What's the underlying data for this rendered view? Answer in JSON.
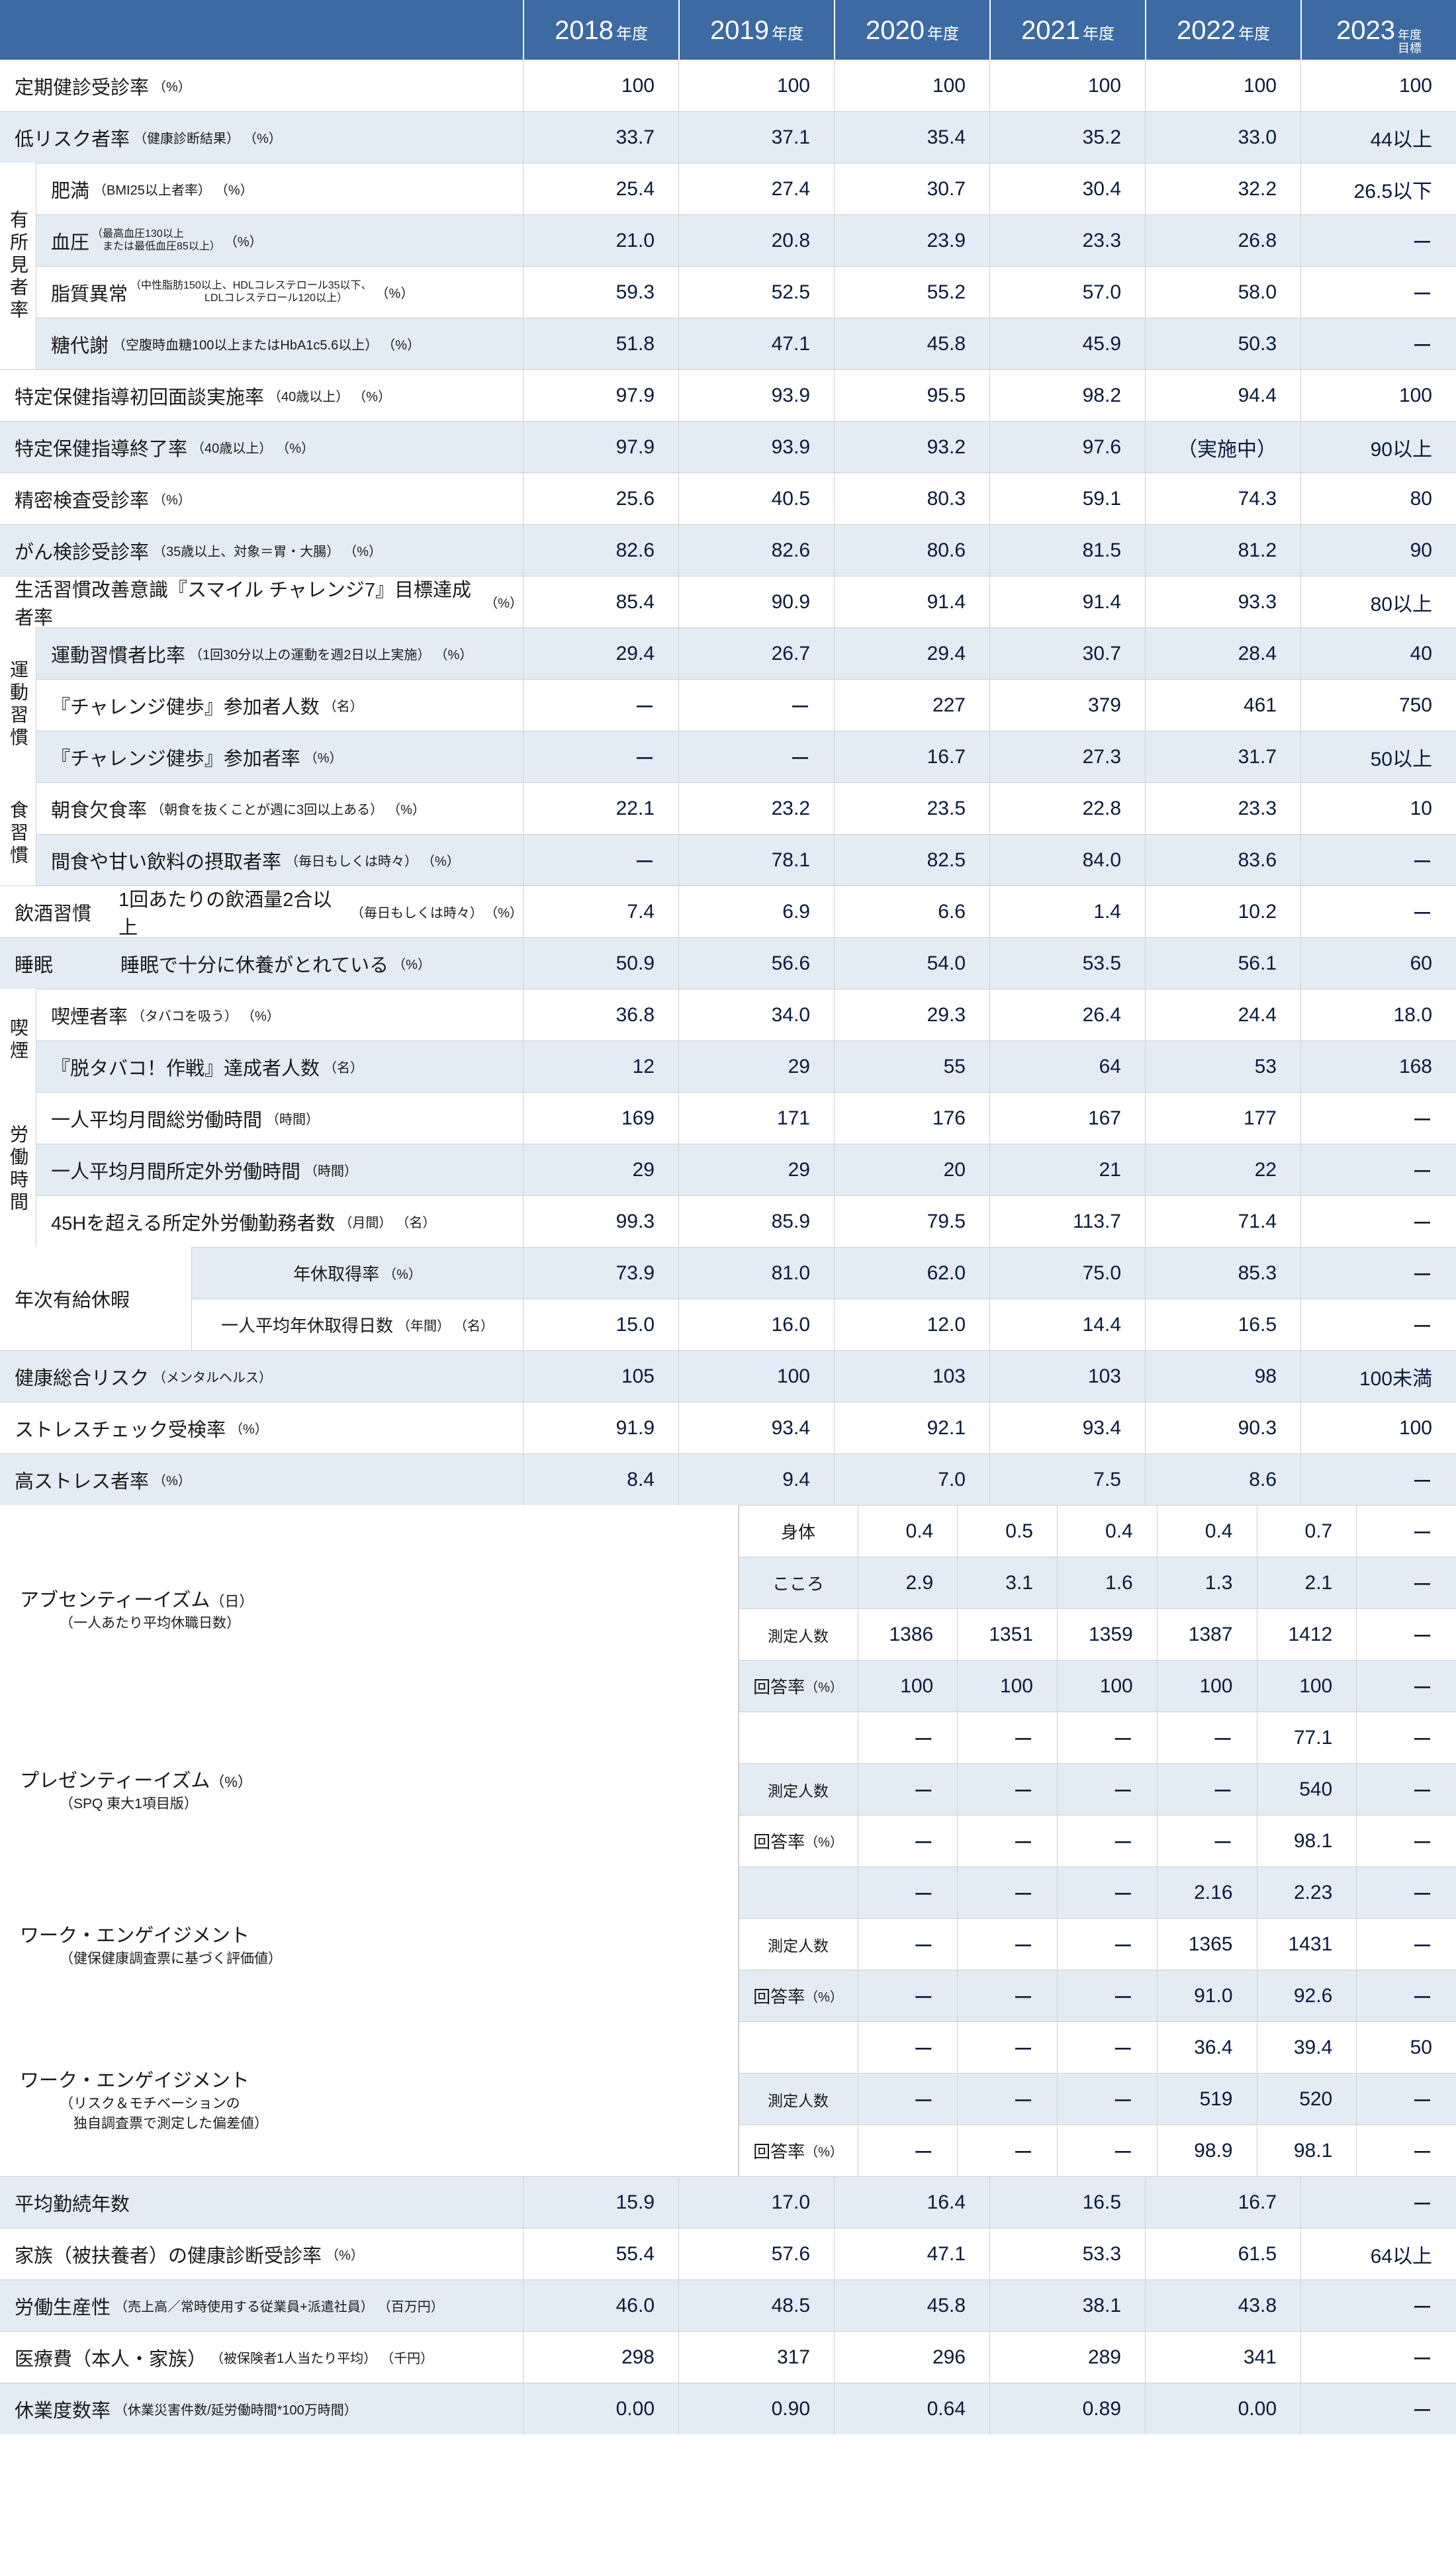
{
  "colors": {
    "header_bg": "#3d6aa2",
    "header_text": "#ffffff",
    "row_even_bg": "#e3ecf5",
    "row_odd_bg": "#ffffff",
    "border": "#d0d0d0",
    "value_text": "#0a1a3a",
    "label_text": "#1a1a1a"
  },
  "headers": [
    {
      "year": "2018",
      "suffix": "年度"
    },
    {
      "year": "2019",
      "suffix": "年度"
    },
    {
      "year": "2020",
      "suffix": "年度"
    },
    {
      "year": "2021",
      "suffix": "年度"
    },
    {
      "year": "2022",
      "suffix": "年度"
    },
    {
      "year": "2023",
      "suffix_small": "年度\n目標"
    }
  ],
  "dash": "ー",
  "rows": [
    {
      "type": "plain",
      "label": "定期健診受診率",
      "unit": "（%）",
      "v": [
        "100",
        "100",
        "100",
        "100",
        "100",
        "100"
      ]
    },
    {
      "type": "plain",
      "label": "低リスク者率",
      "sub": "（健康診断結果）",
      "unit": "（%）",
      "v": [
        "33.7",
        "37.1",
        "35.4",
        "35.2",
        "33.0",
        "44以上"
      ]
    },
    {
      "type": "group_first",
      "vlabel": "有所見者率",
      "span": 4,
      "label": "肥満",
      "sub": "（BMI25以上者率）",
      "unit": "（%）",
      "v": [
        "25.4",
        "27.4",
        "30.7",
        "30.4",
        "32.2",
        "26.5以下"
      ]
    },
    {
      "type": "group_cont",
      "label": "血圧",
      "tiny": "（最高血圧130以上\n　または最低血圧85以上）",
      "unit": "（%）",
      "v": [
        "21.0",
        "20.8",
        "23.9",
        "23.3",
        "26.8",
        "ー"
      ]
    },
    {
      "type": "group_cont",
      "label": "脂質異常",
      "tiny": "（中性脂肪150以上、HDLコレステロール35以下、\n　　　　　　　LDLコレステロール120以上）",
      "unit": "（%）",
      "v": [
        "59.3",
        "52.5",
        "55.2",
        "57.0",
        "58.0",
        "ー"
      ]
    },
    {
      "type": "group_cont",
      "label": "糖代謝",
      "sub": "（空腹時血糖100以上またはHbA1c5.6以上）",
      "unit": "（%）",
      "v": [
        "51.8",
        "47.1",
        "45.8",
        "45.9",
        "50.3",
        "ー"
      ]
    },
    {
      "type": "plain",
      "label": "特定保健指導初回面談実施率",
      "sub": "（40歳以上）",
      "unit": "（%）",
      "v": [
        "97.9",
        "93.9",
        "95.5",
        "98.2",
        "94.4",
        "100"
      ]
    },
    {
      "type": "plain",
      "label": "特定保健指導終了率",
      "sub": "（40歳以上）",
      "unit": "（%）",
      "v": [
        "97.9",
        "93.9",
        "93.2",
        "97.6",
        "（実施中）",
        "90以上"
      ]
    },
    {
      "type": "plain",
      "label": "精密検査受診率",
      "unit": "（%）",
      "v": [
        "25.6",
        "40.5",
        "80.3",
        "59.1",
        "74.3",
        "80"
      ]
    },
    {
      "type": "plain",
      "label": "がん検診受診率",
      "sub": "（35歳以上、対象＝胃・大腸）",
      "unit": "（%）",
      "v": [
        "82.6",
        "82.6",
        "80.6",
        "81.5",
        "81.2",
        "90"
      ]
    },
    {
      "type": "plain",
      "label": "生活習慣改善意識『スマイル チャレンジ7』目標達成者率",
      "unit": "（%）",
      "v": [
        "85.4",
        "90.9",
        "91.4",
        "91.4",
        "93.3",
        "80以上"
      ]
    },
    {
      "type": "group_first",
      "vlabel": "運動習慣",
      "span": 3,
      "label": "運動習慣者比率",
      "sub": "（1回30分以上の運動を週2日以上実施）",
      "unit": "（%）",
      "v": [
        "29.4",
        "26.7",
        "29.4",
        "30.7",
        "28.4",
        "40"
      ]
    },
    {
      "type": "group_cont",
      "label": "『チャレンジ健歩』参加者人数",
      "unit": "（名）",
      "v": [
        "ー",
        "ー",
        "227",
        "379",
        "461",
        "750"
      ]
    },
    {
      "type": "group_cont",
      "label": "『チャレンジ健歩』参加者率",
      "unit": "（%）",
      "v": [
        "ー",
        "ー",
        "16.7",
        "27.3",
        "31.7",
        "50以上"
      ]
    },
    {
      "type": "group_first",
      "vlabel": "食習慣",
      "span": 2,
      "label": "朝食欠食率",
      "sub": "（朝食を抜くことが週に3回以上ある）",
      "unit": "（%）",
      "v": [
        "22.1",
        "23.2",
        "23.5",
        "22.8",
        "23.3",
        "10"
      ]
    },
    {
      "type": "group_cont",
      "label": "間食や甘い飲料の摂取者率",
      "sub": "（毎日もしくは時々）",
      "unit": "（%）",
      "v": [
        "ー",
        "78.1",
        "82.5",
        "84.0",
        "83.6",
        "ー"
      ]
    },
    {
      "type": "with_prefix",
      "prefix": "飲酒習慣",
      "label": "1回あたりの飲酒量2合以上",
      "sub": "（毎日もしくは時々）",
      "unit": "（%）",
      "v": [
        "7.4",
        "6.9",
        "6.6",
        "1.4",
        "10.2",
        "ー"
      ]
    },
    {
      "type": "with_prefix",
      "prefix": "睡眠",
      "label": "睡眠で十分に休養がとれている",
      "unit": "（%）",
      "v": [
        "50.9",
        "56.6",
        "54.0",
        "53.5",
        "56.1",
        "60"
      ]
    },
    {
      "type": "group_first",
      "vlabel": "喫煙",
      "span": 2,
      "label": "喫煙者率",
      "sub": "（タバコを吸う）",
      "unit": "（%）",
      "v": [
        "36.8",
        "34.0",
        "29.3",
        "26.4",
        "24.4",
        "18.0"
      ]
    },
    {
      "type": "group_cont",
      "label": "『脱タバコ！作戦』達成者人数",
      "unit": "（名）",
      "v": [
        "12",
        "29",
        "55",
        "64",
        "53",
        "168"
      ]
    },
    {
      "type": "group_first",
      "vlabel": "労働時間",
      "span": 3,
      "label": "一人平均月間総労働時間",
      "unit": "（時間）",
      "v": [
        "169",
        "171",
        "176",
        "167",
        "177",
        "ー"
      ]
    },
    {
      "type": "group_cont",
      "label": "一人平均月間所定外労働時間",
      "unit": "（時間）",
      "v": [
        "29",
        "29",
        "20",
        "21",
        "22",
        "ー"
      ]
    },
    {
      "type": "group_cont",
      "label": "45Hを超える所定外労働勤務者数",
      "sub": "（月間）",
      "unit": "（名）",
      "v": [
        "99.3",
        "85.9",
        "79.5",
        "113.7",
        "71.4",
        "ー"
      ]
    },
    {
      "type": "wide_first",
      "wlabel": "年次有給休暇",
      "span": 2,
      "sublabel": "年休取得率",
      "subunit": "（%）",
      "v": [
        "73.9",
        "81.0",
        "62.0",
        "75.0",
        "85.3",
        "ー"
      ]
    },
    {
      "type": "wide_cont",
      "sublabel": "一人平均年休取得日数",
      "subsub": "（年間）",
      "subunit": "（名）",
      "v": [
        "15.0",
        "16.0",
        "12.0",
        "14.4",
        "16.5",
        "ー"
      ]
    },
    {
      "type": "plain",
      "label": "健康総合リスク",
      "sub": "（メンタルヘルス）",
      "v": [
        "105",
        "100",
        "103",
        "103",
        "98",
        "100未満"
      ]
    },
    {
      "type": "plain",
      "label": "ストレスチェック受検率",
      "unit": "（%）",
      "v": [
        "91.9",
        "93.4",
        "92.1",
        "93.4",
        "90.3",
        "100"
      ]
    },
    {
      "type": "plain",
      "label": "高ストレス者率",
      "unit": "（%）",
      "v": [
        "8.4",
        "9.4",
        "7.0",
        "7.5",
        "8.6",
        "ー"
      ]
    },
    {
      "type": "subcol_first",
      "title": "アブセンティーイズム",
      "title_unit": "（日）",
      "title_sub": "（一人あたり平均休職日数）",
      "span": 4,
      "sublabel": "身体",
      "v": [
        "0.4",
        "0.5",
        "0.4",
        "0.4",
        "0.7",
        "ー"
      ]
    },
    {
      "type": "subcol_cont",
      "sublabel": "こころ",
      "v": [
        "2.9",
        "3.1",
        "1.6",
        "1.3",
        "2.1",
        "ー"
      ]
    },
    {
      "type": "subcol_cont",
      "sublabel": "測定人数",
      "v": [
        "1386",
        "1351",
        "1359",
        "1387",
        "1412",
        "ー"
      ]
    },
    {
      "type": "subcol_cont",
      "sublabel": "回答率",
      "subunit": "（%）",
      "v": [
        "100",
        "100",
        "100",
        "100",
        "100",
        "ー"
      ]
    },
    {
      "type": "subcol_first",
      "title": "プレゼンティーイズム",
      "title_unit": "（%）",
      "title_sub": "（SPQ 東大1項目版）",
      "span": 3,
      "sublabel": "",
      "v": [
        "ー",
        "ー",
        "ー",
        "ー",
        "77.1",
        "ー"
      ]
    },
    {
      "type": "subcol_cont",
      "sublabel": "測定人数",
      "v": [
        "ー",
        "ー",
        "ー",
        "ー",
        "540",
        "ー"
      ]
    },
    {
      "type": "subcol_cont",
      "sublabel": "回答率",
      "subunit": "（%）",
      "v": [
        "ー",
        "ー",
        "ー",
        "ー",
        "98.1",
        "ー"
      ]
    },
    {
      "type": "subcol_first",
      "title": "ワーク・エンゲイジメント",
      "title_sub": "（健保健康調査票に基づく評価値）",
      "span": 3,
      "sublabel": "",
      "v": [
        "ー",
        "ー",
        "ー",
        "2.16",
        "2.23",
        "ー"
      ]
    },
    {
      "type": "subcol_cont",
      "sublabel": "測定人数",
      "v": [
        "ー",
        "ー",
        "ー",
        "1365",
        "1431",
        "ー"
      ]
    },
    {
      "type": "subcol_cont",
      "sublabel": "回答率",
      "subunit": "（%）",
      "v": [
        "ー",
        "ー",
        "ー",
        "91.0",
        "92.6",
        "ー"
      ]
    },
    {
      "type": "subcol_first",
      "title": "ワーク・エンゲイジメント",
      "title_sub": "（リスク＆モチベーションの\n　独自調査票で測定した偏差値）",
      "span": 3,
      "sublabel": "",
      "v": [
        "ー",
        "ー",
        "ー",
        "36.4",
        "39.4",
        "50"
      ]
    },
    {
      "type": "subcol_cont",
      "sublabel": "測定人数",
      "v": [
        "ー",
        "ー",
        "ー",
        "519",
        "520",
        "ー"
      ]
    },
    {
      "type": "subcol_cont",
      "sublabel": "回答率",
      "subunit": "（%）",
      "v": [
        "ー",
        "ー",
        "ー",
        "98.9",
        "98.1",
        "ー"
      ]
    },
    {
      "type": "plain",
      "label": "平均勤続年数",
      "v": [
        "15.9",
        "17.0",
        "16.4",
        "16.5",
        "16.7",
        "ー"
      ]
    },
    {
      "type": "plain",
      "label": "家族（被扶養者）の健康診断受診率",
      "unit": "（%）",
      "v": [
        "55.4",
        "57.6",
        "47.1",
        "53.3",
        "61.5",
        "64以上"
      ]
    },
    {
      "type": "plain",
      "label": "労働生産性",
      "sub": "（売上高／常時使用する従業員+派遣社員）",
      "unit": "（百万円）",
      "v": [
        "46.0",
        "48.5",
        "45.8",
        "38.1",
        "43.8",
        "ー"
      ]
    },
    {
      "type": "plain",
      "label": "医療費（本人・家族）",
      "sub": "（被保険者1人当たり平均）",
      "unit": "（千円）",
      "v": [
        "298",
        "317",
        "296",
        "289",
        "341",
        "ー"
      ]
    },
    {
      "type": "plain",
      "label": "休業度数率",
      "sub": "（休業災害件数/延労働時間*100万時間）",
      "v": [
        "0.00",
        "0.90",
        "0.64",
        "0.89",
        "0.00",
        "ー"
      ]
    }
  ]
}
